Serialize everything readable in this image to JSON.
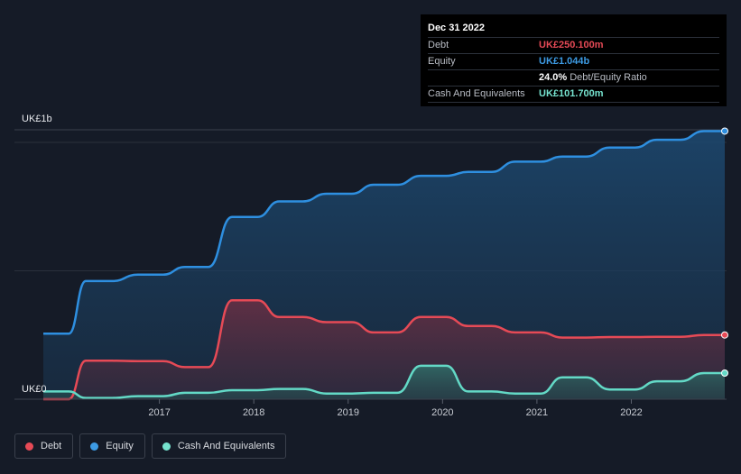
{
  "chart_data": {
    "type": "area",
    "title": "",
    "xlabel": "",
    "ylabel": "",
    "y_unit_labels": {
      "top": "UK£1b",
      "bottom": "UK£0"
    },
    "ylim": [
      0,
      1.1
    ],
    "xlim": [
      2015.77,
      2022.99
    ],
    "x_ticks": [
      2017,
      2018,
      2019,
      2020,
      2021,
      2022
    ],
    "x_tick_labels": [
      "2017",
      "2018",
      "2019",
      "2020",
      "2021",
      "2022"
    ],
    "series": [
      {
        "name": "Equity",
        "color": "#2e8fe0",
        "points": [
          [
            2015.77,
            0.255
          ],
          [
            2016.04,
            0.255
          ],
          [
            2016.22,
            0.46
          ],
          [
            2016.5,
            0.46
          ],
          [
            2016.77,
            0.485
          ],
          [
            2017.04,
            0.485
          ],
          [
            2017.27,
            0.515
          ],
          [
            2017.52,
            0.515
          ],
          [
            2017.77,
            0.71
          ],
          [
            2018.04,
            0.71
          ],
          [
            2018.27,
            0.77
          ],
          [
            2018.52,
            0.77
          ],
          [
            2018.77,
            0.8
          ],
          [
            2019.04,
            0.8
          ],
          [
            2019.27,
            0.835
          ],
          [
            2019.52,
            0.835
          ],
          [
            2019.77,
            0.87
          ],
          [
            2020.04,
            0.87
          ],
          [
            2020.27,
            0.885
          ],
          [
            2020.52,
            0.885
          ],
          [
            2020.77,
            0.925
          ],
          [
            2021.04,
            0.925
          ],
          [
            2021.27,
            0.945
          ],
          [
            2021.52,
            0.945
          ],
          [
            2021.77,
            0.98
          ],
          [
            2022.04,
            0.98
          ],
          [
            2022.27,
            1.01
          ],
          [
            2022.52,
            1.01
          ],
          [
            2022.77,
            1.044
          ],
          [
            2022.99,
            1.044
          ]
        ]
      },
      {
        "name": "Debt",
        "color": "#e64a56",
        "points": [
          [
            2015.77,
            0.0
          ],
          [
            2016.04,
            0.0
          ],
          [
            2016.22,
            0.15
          ],
          [
            2016.5,
            0.15
          ],
          [
            2016.77,
            0.148
          ],
          [
            2017.04,
            0.148
          ],
          [
            2017.27,
            0.125
          ],
          [
            2017.52,
            0.125
          ],
          [
            2017.77,
            0.385
          ],
          [
            2018.04,
            0.385
          ],
          [
            2018.27,
            0.32
          ],
          [
            2018.52,
            0.32
          ],
          [
            2018.77,
            0.3
          ],
          [
            2019.04,
            0.3
          ],
          [
            2019.27,
            0.26
          ],
          [
            2019.52,
            0.26
          ],
          [
            2019.77,
            0.32
          ],
          [
            2020.04,
            0.32
          ],
          [
            2020.27,
            0.285
          ],
          [
            2020.52,
            0.285
          ],
          [
            2020.77,
            0.26
          ],
          [
            2021.04,
            0.26
          ],
          [
            2021.27,
            0.24
          ],
          [
            2021.52,
            0.24
          ],
          [
            2021.77,
            0.242
          ],
          [
            2022.04,
            0.242
          ],
          [
            2022.27,
            0.243
          ],
          [
            2022.52,
            0.243
          ],
          [
            2022.77,
            0.25
          ],
          [
            2022.99,
            0.2501
          ]
        ]
      },
      {
        "name": "Cash And Equivalents",
        "color": "#63d9c6",
        "points": [
          [
            2015.77,
            0.03
          ],
          [
            2016.04,
            0.03
          ],
          [
            2016.22,
            0.005
          ],
          [
            2016.5,
            0.005
          ],
          [
            2016.77,
            0.012
          ],
          [
            2017.04,
            0.012
          ],
          [
            2017.27,
            0.025
          ],
          [
            2017.52,
            0.025
          ],
          [
            2017.77,
            0.035
          ],
          [
            2018.04,
            0.035
          ],
          [
            2018.27,
            0.04
          ],
          [
            2018.52,
            0.04
          ],
          [
            2018.77,
            0.022
          ],
          [
            2019.04,
            0.022
          ],
          [
            2019.27,
            0.025
          ],
          [
            2019.52,
            0.025
          ],
          [
            2019.77,
            0.13
          ],
          [
            2020.04,
            0.13
          ],
          [
            2020.27,
            0.03
          ],
          [
            2020.52,
            0.03
          ],
          [
            2020.77,
            0.022
          ],
          [
            2021.04,
            0.022
          ],
          [
            2021.27,
            0.085
          ],
          [
            2021.52,
            0.085
          ],
          [
            2021.77,
            0.038
          ],
          [
            2022.04,
            0.038
          ],
          [
            2022.27,
            0.07
          ],
          [
            2022.52,
            0.07
          ],
          [
            2022.77,
            0.1017
          ],
          [
            2022.99,
            0.1017
          ]
        ]
      }
    ],
    "legend": [
      "Debt",
      "Equity",
      "Cash And Equivalents"
    ],
    "legend_position": "bottom-left"
  },
  "tooltip": {
    "date": "Dec 31 2022",
    "debt_label": "Debt",
    "debt_value": "UK£250.100m",
    "equity_label": "Equity",
    "equity_value": "UK£1.044b",
    "ratio_value": "24.0%",
    "ratio_label": "Debt/Equity Ratio",
    "cash_label": "Cash And Equivalents",
    "cash_value": "UK£101.700m"
  },
  "legend": {
    "debt": "Debt",
    "equity": "Equity",
    "cash": "Cash And Equivalents"
  },
  "colors": {
    "debt": "#e64a56",
    "equity": "#3d9be4",
    "cash": "#76e3cf",
    "background": "#151b27"
  }
}
